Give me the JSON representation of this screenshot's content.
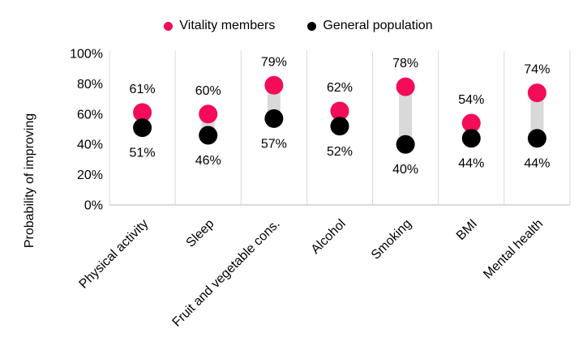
{
  "legend": {
    "items": [
      {
        "label": "Vitality members",
        "color": "#F40C58"
      },
      {
        "label": "General population",
        "color": "#000000"
      }
    ]
  },
  "chart_data": {
    "type": "scatter",
    "variant": "dumbbell",
    "title": "",
    "xlabel": "",
    "ylabel": "Probability of improving",
    "ylim": [
      0,
      100
    ],
    "yticks": [
      0,
      20,
      40,
      60,
      80,
      100
    ],
    "ytick_labels": [
      "0%",
      "20%",
      "40%",
      "60%",
      "80%",
      "100%"
    ],
    "categories": [
      "Physical activity",
      "Sleep",
      "Fruit and vegetable cons.",
      "Alcohol",
      "Smoking",
      "BMI",
      "Mental health"
    ],
    "series": [
      {
        "name": "Vitality members",
        "color": "#F40C58",
        "values": [
          61,
          60,
          79,
          62,
          78,
          54,
          74
        ]
      },
      {
        "name": "General population",
        "color": "#000000",
        "values": [
          51,
          46,
          57,
          52,
          40,
          44,
          44
        ]
      }
    ],
    "value_suffix": "%",
    "data_labels": true,
    "legend_position": "top",
    "grid": "vertical-column-separators",
    "separator_color": "#D9D9D9",
    "axis_line_color": "#CFCFCF",
    "connector_color": "#D9D9D9"
  }
}
